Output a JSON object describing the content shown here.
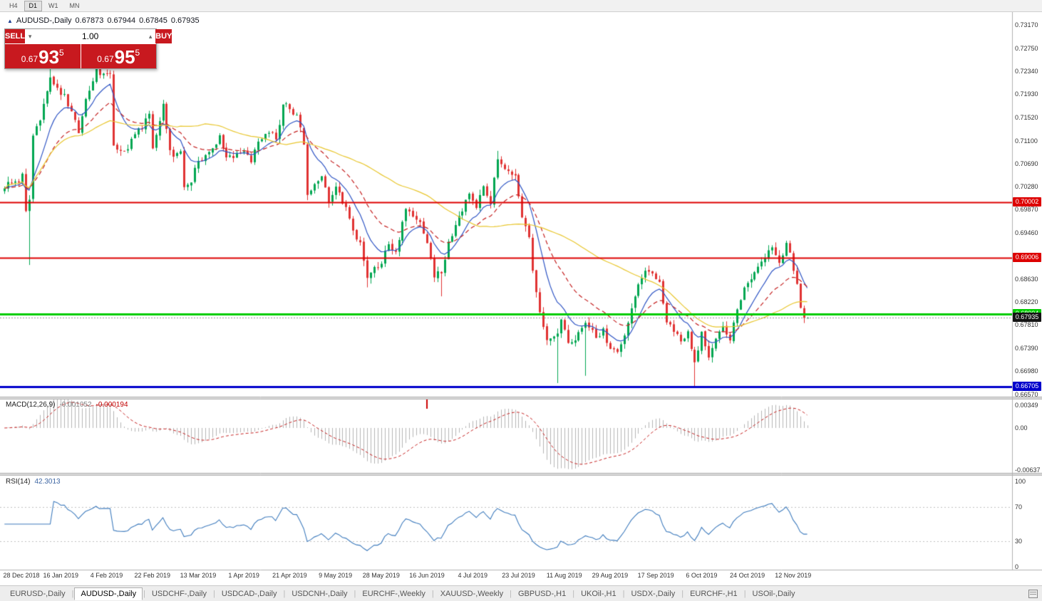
{
  "toolbar": {
    "periods": [
      {
        "label": "H4",
        "active": false
      },
      {
        "label": "D1",
        "active": true
      },
      {
        "label": "W1",
        "active": false
      },
      {
        "label": "MN",
        "active": false
      }
    ]
  },
  "chart": {
    "title": {
      "icon": "▲",
      "symbol": "AUDUSD-,Daily",
      "open": "0.67873",
      "high": "0.67944",
      "low": "0.67845",
      "close": "0.67935"
    }
  },
  "trade_panel": {
    "sell_label": "SELL",
    "buy_label": "BUY",
    "volume": "1.00",
    "volume_down_glyph": "▾",
    "volume_up_glyph": "▴",
    "sell_price": {
      "base": "0.67",
      "pips": "93",
      "point": "5"
    },
    "buy_price": {
      "base": "0.67",
      "pips": "95",
      "point": "5"
    },
    "panel_color": "#c8191f"
  },
  "price_axis": {
    "ticks": [
      "0.73170",
      "0.72750",
      "0.72340",
      "0.71930",
      "0.71520",
      "0.71100",
      "0.70690",
      "0.70280",
      "0.69870",
      "0.69460",
      "0.69050",
      "0.68630",
      "0.68220",
      "0.67810",
      "0.67390",
      "0.66980",
      "0.66570"
    ],
    "current": {
      "value": 0.67935,
      "label": "0.67935",
      "bg": "#141414",
      "color": "#ffffff"
    }
  },
  "levels": [
    {
      "price": 0.70002,
      "label": "0.70002",
      "color": "#dd0000",
      "line_width": 2
    },
    {
      "price": 0.69006,
      "label": "0.69006",
      "color": "#dd0000",
      "line_width": 2
    },
    {
      "price": 0.68004,
      "label": "0.68004",
      "color": "#00cc00",
      "line_width": 3
    },
    {
      "price": 0.66705,
      "label": "0.66705",
      "color": "#0000cc",
      "line_width": 3
    }
  ],
  "macd": {
    "header": "MACD(12,26,9)",
    "v1": "-0.001052",
    "v2": "-0.000194",
    "axis": [
      "0.00349",
      "0.00",
      "-0.00637"
    ]
  },
  "rsi": {
    "header": "RSI(14)",
    "value": "42.3013",
    "axis": [
      "100",
      "70",
      "30",
      "0"
    ]
  },
  "x_axis": {
    "labels": [
      {
        "t": "28 Dec 2018",
        "i": 0
      },
      {
        "t": "16 Jan 2019",
        "i": 12
      },
      {
        "t": "4 Feb 2019",
        "i": 25
      },
      {
        "t": "22 Feb 2019",
        "i": 38
      },
      {
        "t": "13 Mar 2019",
        "i": 51
      },
      {
        "t": "1 Apr 2019",
        "i": 64
      },
      {
        "t": "21 Apr 2019",
        "i": 77
      },
      {
        "t": "9 May 2019",
        "i": 90
      },
      {
        "t": "28 May 2019",
        "i": 103
      },
      {
        "t": "16 Jun 2019",
        "i": 116
      },
      {
        "t": "4 Jul 2019",
        "i": 129
      },
      {
        "t": "23 Jul 2019",
        "i": 142
      },
      {
        "t": "11 Aug 2019",
        "i": 155
      },
      {
        "t": "29 Aug 2019",
        "i": 168
      },
      {
        "t": "17 Sep 2019",
        "i": 181
      },
      {
        "t": "6 Oct 2019",
        "i": 194
      },
      {
        "t": "24 Oct 2019",
        "i": 207
      },
      {
        "t": "12 Nov 2019",
        "i": 220
      }
    ]
  },
  "tab_bar": {
    "separator": "|",
    "tabs": [
      {
        "label": "EURUSD-,Daily",
        "active": false
      },
      {
        "label": "AUDUSD-,Daily",
        "active": true
      },
      {
        "label": "USDCHF-,Daily",
        "active": false
      },
      {
        "label": "USDCAD-,Daily",
        "active": false
      },
      {
        "label": "USDCNH-,Daily",
        "active": false
      },
      {
        "label": "EURCHF-,Weekly",
        "active": false
      },
      {
        "label": "XAUUSD-,Weekly",
        "active": false
      },
      {
        "label": "GBPUSD-,H1",
        "active": false
      },
      {
        "label": "UKOil-,H1",
        "active": false
      },
      {
        "label": "USDX-,Daily",
        "active": false
      },
      {
        "label": "EURCHF-,H1",
        "active": false
      },
      {
        "label": "USOil-,Daily",
        "active": false
      }
    ]
  },
  "chart_data": {
    "type": "candlestick",
    "symbol": "AUDUSD",
    "timeframe": "Daily",
    "visible_range": [
      0.6657,
      0.7317
    ],
    "up_color": "#00a651",
    "down_color": "#e03232",
    "ma_lines": [
      {
        "period": 10,
        "color": "#2f55c4",
        "style": "solid"
      },
      {
        "period": 22,
        "color": "#c42020",
        "style": "dash"
      },
      {
        "period": 50,
        "color": "#e8c62e",
        "style": "solid"
      }
    ],
    "macd": {
      "fast": 12,
      "slow": 26,
      "signal": 9,
      "hist_color": "#b4b4b4",
      "signal_color": "#c42020",
      "axis_range": [
        -0.00637,
        0.00349
      ]
    },
    "rsi": {
      "period": 14,
      "color": "#3e7bbd",
      "levels": [
        30,
        70
      ],
      "last_value": 42.3013
    },
    "current_line_color": "#909090",
    "last_close": 0.67935,
    "seed": 97,
    "event_marker_index": 116,
    "anchors": [
      [
        -4,
        0.703
      ],
      [
        0,
        0.704
      ],
      [
        1,
        0.7048
      ],
      [
        2,
        0.6985
      ],
      [
        3,
        0.7
      ],
      [
        4,
        0.7115
      ],
      [
        6,
        0.715
      ],
      [
        9,
        0.722
      ],
      [
        11,
        0.72
      ],
      [
        13,
        0.719
      ],
      [
        15,
        0.716
      ],
      [
        17,
        0.7125
      ],
      [
        19,
        0.718
      ],
      [
        22,
        0.724
      ],
      [
        24,
        0.7225
      ],
      [
        26,
        0.7235
      ],
      [
        27,
        0.7105
      ],
      [
        29,
        0.709
      ],
      [
        31,
        0.7095
      ],
      [
        33,
        0.7125
      ],
      [
        35,
        0.713
      ],
      [
        37,
        0.716
      ],
      [
        38,
        0.7095
      ],
      [
        39,
        0.7125
      ],
      [
        41,
        0.7175
      ],
      [
        43,
        0.7095
      ],
      [
        44,
        0.708
      ],
      [
        46,
        0.709
      ],
      [
        47,
        0.703
      ],
      [
        49,
        0.704
      ],
      [
        51,
        0.7075
      ],
      [
        54,
        0.709
      ],
      [
        57,
        0.7115
      ],
      [
        59,
        0.708
      ],
      [
        62,
        0.7085
      ],
      [
        64,
        0.7095
      ],
      [
        66,
        0.707
      ],
      [
        68,
        0.711
      ],
      [
        71,
        0.7125
      ],
      [
        73,
        0.7115
      ],
      [
        75,
        0.717
      ],
      [
        76,
        0.7175
      ],
      [
        79,
        0.7155
      ],
      [
        81,
        0.7105
      ],
      [
        82,
        0.7015
      ],
      [
        84,
        0.7035
      ],
      [
        86,
        0.705
      ],
      [
        88,
        0.7
      ],
      [
        90,
        0.7025
      ],
      [
        93,
        0.699
      ],
      [
        95,
        0.6945
      ],
      [
        97,
        0.6925
      ],
      [
        99,
        0.6865
      ],
      [
        101,
        0.688
      ],
      [
        103,
        0.6895
      ],
      [
        105,
        0.6925
      ],
      [
        107,
        0.691
      ],
      [
        108,
        0.6935
      ],
      [
        110,
        0.699
      ],
      [
        112,
        0.6975
      ],
      [
        114,
        0.696
      ],
      [
        116,
        0.693
      ],
      [
        118,
        0.687
      ],
      [
        120,
        0.6875
      ],
      [
        122,
        0.6925
      ],
      [
        124,
        0.696
      ],
      [
        126,
        0.6985
      ],
      [
        128,
        0.702
      ],
      [
        130,
        0.6995
      ],
      [
        132,
        0.703
      ],
      [
        134,
        0.7
      ],
      [
        136,
        0.708
      ],
      [
        138,
        0.706
      ],
      [
        140,
        0.7045
      ],
      [
        141,
        0.705
      ],
      [
        143,
        0.6975
      ],
      [
        145,
        0.694
      ],
      [
        146,
        0.6875
      ],
      [
        148,
        0.68
      ],
      [
        150,
        0.6755
      ],
      [
        153,
        0.6765
      ],
      [
        154,
        0.6795
      ],
      [
        156,
        0.6745
      ],
      [
        158,
        0.675
      ],
      [
        160,
        0.678
      ],
      [
        162,
        0.678
      ],
      [
        164,
        0.676
      ],
      [
        166,
        0.677
      ],
      [
        168,
        0.6735
      ],
      [
        170,
        0.6735
      ],
      [
        172,
        0.676
      ],
      [
        174,
        0.681
      ],
      [
        176,
        0.6855
      ],
      [
        178,
        0.688
      ],
      [
        180,
        0.6875
      ],
      [
        182,
        0.6855
      ],
      [
        184,
        0.679
      ],
      [
        186,
        0.677
      ],
      [
        188,
        0.675
      ],
      [
        190,
        0.6765
      ],
      [
        192,
        0.671
      ],
      [
        194,
        0.677
      ],
      [
        196,
        0.6725
      ],
      [
        198,
        0.676
      ],
      [
        200,
        0.678
      ],
      [
        202,
        0.6755
      ],
      [
        204,
        0.681
      ],
      [
        206,
        0.685
      ],
      [
        208,
        0.6865
      ],
      [
        210,
        0.6885
      ],
      [
        212,
        0.69
      ],
      [
        214,
        0.692
      ],
      [
        216,
        0.6895
      ],
      [
        218,
        0.6925
      ],
      [
        219,
        0.691
      ],
      [
        220,
        0.688
      ],
      [
        221,
        0.685
      ],
      [
        222,
        0.681
      ],
      [
        223,
        0.6795
      ],
      [
        224,
        0.67935
      ]
    ],
    "wick_lows": [
      [
        3,
        0.6888
      ],
      [
        99,
        0.6848
      ],
      [
        120,
        0.6832
      ],
      [
        153,
        0.6677
      ],
      [
        161,
        0.669
      ],
      [
        192,
        0.667
      ]
    ],
    "wick_highs": [
      [
        9,
        0.724
      ],
      [
        22,
        0.7252
      ],
      [
        136,
        0.7092
      ]
    ]
  }
}
